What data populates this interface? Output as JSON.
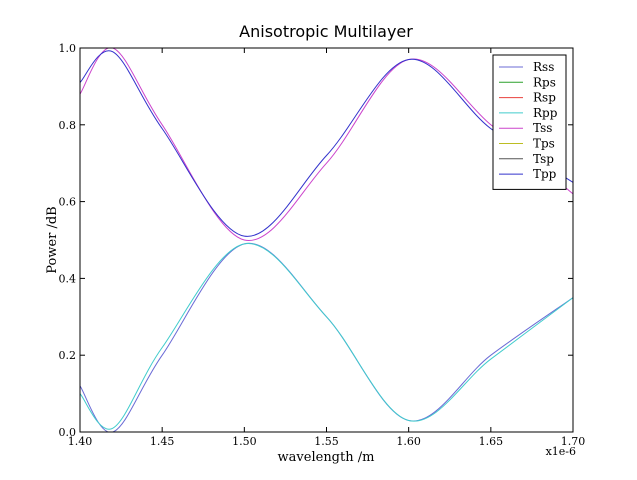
{
  "chart_data": {
    "type": "line",
    "title": "Anisotropic Multilayer",
    "xlabel": "wavelength /m",
    "ylabel": "Power /dB",
    "x_offset_label": "x1e-6",
    "xlim": [
      1.4,
      1.7
    ],
    "ylim": [
      0.0,
      1.0
    ],
    "xticks": [
      "1.40",
      "1.45",
      "1.50",
      "1.55",
      "1.60",
      "1.65",
      "1.70"
    ],
    "yticks": [
      "0.0",
      "0.2",
      "0.4",
      "0.6",
      "0.8",
      "1.0"
    ],
    "grid": false,
    "legend_position": "upper right",
    "x": [
      1.4,
      1.42,
      1.45,
      1.5,
      1.55,
      1.6,
      1.65,
      1.7
    ],
    "series": [
      {
        "name": "Rss",
        "color": "#6b6bd6",
        "values": [
          0.12,
          0.0,
          0.2,
          0.49,
          0.3,
          0.03,
          0.2,
          0.35
        ]
      },
      {
        "name": "Rps",
        "color": "#2ca02c",
        "values": [
          0.0,
          0.0,
          0.0,
          0.0,
          0.0,
          0.0,
          0.0,
          0.0
        ]
      },
      {
        "name": "Rsp",
        "color": "#e8413c",
        "values": [
          0.0,
          0.0,
          0.0,
          0.0,
          0.0,
          0.0,
          0.0,
          0.0
        ]
      },
      {
        "name": "Rpp",
        "color": "#40cccc",
        "values": [
          0.1,
          0.01,
          0.22,
          0.49,
          0.3,
          0.03,
          0.19,
          0.35
        ]
      },
      {
        "name": "Tss",
        "color": "#cc44cc",
        "values": [
          0.88,
          1.0,
          0.8,
          0.5,
          0.7,
          0.97,
          0.8,
          0.62
        ]
      },
      {
        "name": "Tps",
        "color": "#bcbd22",
        "values": [
          0.0,
          0.0,
          0.0,
          0.0,
          0.0,
          0.0,
          0.0,
          0.0
        ]
      },
      {
        "name": "Tsp",
        "color": "#555555",
        "values": [
          0.0,
          0.0,
          0.0,
          0.0,
          0.0,
          0.0,
          0.0,
          0.0
        ]
      },
      {
        "name": "Tpp",
        "color": "#3333cc",
        "values": [
          0.91,
          0.99,
          0.79,
          0.51,
          0.72,
          0.97,
          0.79,
          0.65
        ]
      }
    ]
  }
}
